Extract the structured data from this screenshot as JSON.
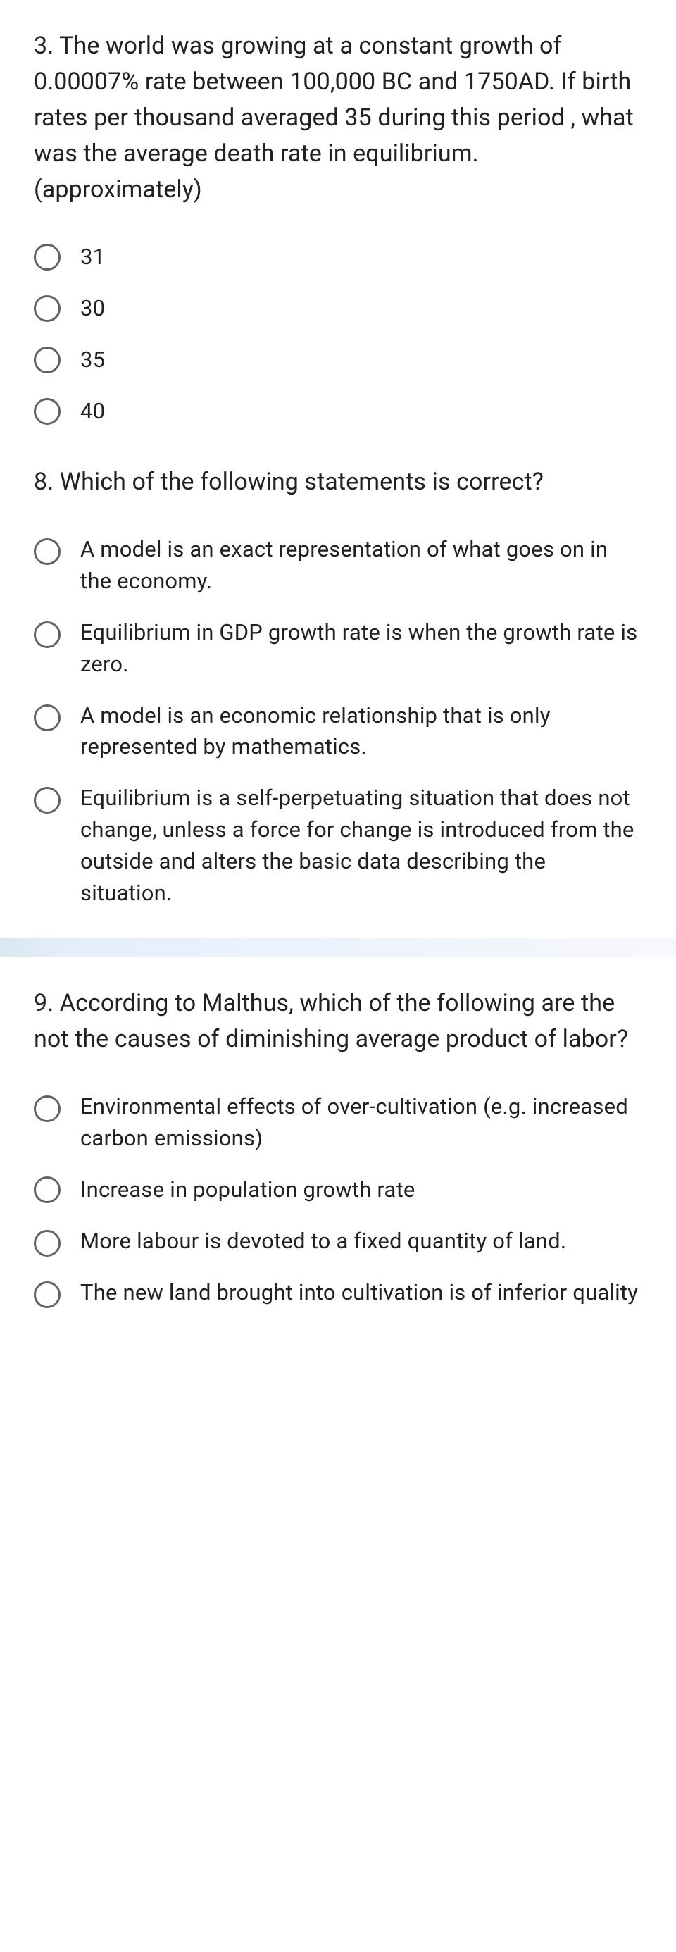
{
  "questions": [
    {
      "prompt": "3. The world was growing at a constant growth of 0.00007% rate between 100,000 BC and 1750AD. If birth rates per thousand averaged 35 during this period , what was the average death rate in equilibrium. (approximately)",
      "options": [
        "31",
        "30",
        "35",
        "40"
      ]
    },
    {
      "prompt": "8. Which of the following statements is correct?",
      "options": [
        "A model is an exact representation of what goes on in the economy.",
        "Equilibrium in GDP growth rate is when the growth rate is zero.",
        "A model is an economic relationship that is only represented by mathematics.",
        "Equilibrium is a self-perpetuating situation that does not change, unless a force for change is introduced from the outside and alters the basic data describing the situation."
      ]
    },
    {
      "prompt": "9. According to Malthus, which of the following are the not the causes of diminishing average product of labor?",
      "options": [
        "Environmental effects of over-cultivation (e.g. increased carbon emissions)",
        "Increase in population growth rate",
        "More labour is devoted to a fixed quantity of land.",
        "The new land brought into cultivation is of inferior quality"
      ]
    }
  ]
}
